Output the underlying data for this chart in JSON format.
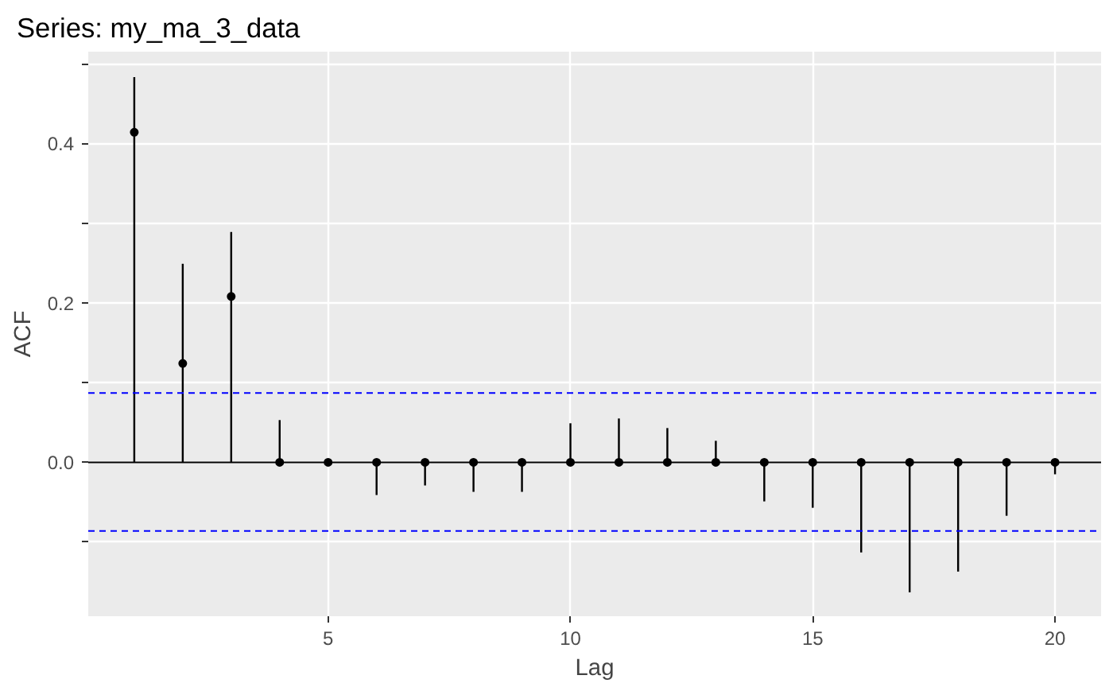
{
  "chart_data": {
    "type": "bar",
    "title": "Series: my_ma_3_data",
    "xlabel": "Lag",
    "ylabel": "ACF",
    "x": [
      1,
      2,
      3,
      4,
      5,
      6,
      7,
      8,
      9,
      10,
      11,
      12,
      13,
      14,
      15,
      16,
      17,
      18,
      19,
      20
    ],
    "series": [
      {
        "color": "#000000",
        "values": [
          0.483,
          0.249,
          0.289,
          0.053,
          0.002,
          -0.041,
          -0.029,
          -0.037,
          -0.037,
          0.049,
          0.055,
          0.043,
          0.027,
          -0.049,
          -0.057,
          -0.113,
          -0.163,
          -0.137,
          -0.067,
          -0.015
        ]
      },
      {
        "type": "scatter",
        "color": "#000000",
        "values": [
          0.414,
          0.124,
          0.208,
          0,
          0,
          0,
          0,
          0,
          0,
          0,
          0,
          0,
          0,
          0,
          0,
          0,
          0,
          0,
          0,
          0
        ]
      }
    ],
    "xlim": [
      0.05,
      20.95
    ],
    "ylim": [
      -0.193,
      0.515
    ],
    "xticks": [
      5,
      10,
      15,
      20
    ],
    "yticks": [
      {
        "value": -0.1,
        "label": null
      },
      {
        "value": 0,
        "label": "0.0"
      },
      {
        "value": 0.1,
        "label": null
      },
      {
        "value": 0.2,
        "label": "0.2"
      },
      {
        "value": 0.3,
        "label": null
      },
      {
        "value": 0.4,
        "label": "0.4"
      },
      {
        "value": 0.5,
        "label": null
      }
    ],
    "ref_lines": [
      {
        "axis": "y",
        "value": 0,
        "color": "#000000",
        "line_style": "solid"
      },
      {
        "axis": "y",
        "value": 0.087,
        "color": "#0000ff",
        "line_style": "dashed"
      },
      {
        "axis": "y",
        "value": -0.086,
        "color": "#0000ff",
        "line_style": "dashed"
      }
    ],
    "grid": true,
    "marker": "circle"
  }
}
